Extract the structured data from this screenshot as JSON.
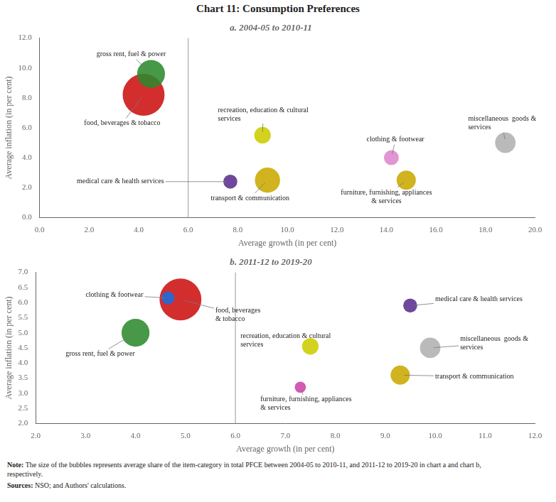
{
  "title": "Chart 11: Consumption Preferences",
  "notes": [
    {
      "bold": "Note:",
      "text": " The size of the bubbles represents average share of the item-category in total PFCE between 2004-05 to 2010-11, and 2011-12 to 2019-20 in chart a and chart b,\nrespectively."
    },
    {
      "bold": "Sources:",
      "text": " NSO; and Authors' calculations."
    }
  ],
  "chart_data": [
    {
      "type": "bubble",
      "subtitle": "a. 2004-05 to 2010-11",
      "xlabel": "Average growth (in per cent)",
      "ylabel": "Average inflation (in per cent)",
      "xlim": [
        0.0,
        20.0
      ],
      "ylim": [
        0.0,
        12.0
      ],
      "xticks": [
        {
          "value": 0.0,
          "label": "0.0"
        },
        {
          "value": 2.0,
          "label": "2.0"
        },
        {
          "value": 4.0,
          "label": "4.0"
        },
        {
          "value": 6.0,
          "label": "6.0"
        },
        {
          "value": 8.0,
          "label": "8.0"
        },
        {
          "value": 10.0,
          "label": "10.0"
        },
        {
          "value": 12.0,
          "label": "12.0"
        },
        {
          "value": 14.0,
          "label": "14.0"
        },
        {
          "value": 16.0,
          "label": "16.0"
        },
        {
          "value": 18.0,
          "label": "18.0"
        },
        {
          "value": 20.0,
          "label": "20.0"
        }
      ],
      "yticks": [
        {
          "value": 0.0,
          "label": "0.0"
        },
        {
          "value": 2.0,
          "label": "2.0"
        },
        {
          "value": 4.0,
          "label": "4.0"
        },
        {
          "value": 6.0,
          "label": "6.0"
        },
        {
          "value": 8.0,
          "label": "8.0"
        },
        {
          "value": 10.0,
          "label": "10.0"
        },
        {
          "value": 12.0,
          "label": "12.0"
        }
      ],
      "grid": false,
      "vline": 6.0,
      "bubbles": [
        {
          "label": "food, beverages & tobacco",
          "x": 4.2,
          "y": 8.2,
          "size": 1800,
          "color": "#cc1111"
        },
        {
          "label": "gross rent, fuel & power",
          "x": 4.5,
          "y": 9.6,
          "size": 800,
          "color": "#2d8a2d"
        },
        {
          "label": "medical care & health services",
          "x": 7.7,
          "y": 2.4,
          "size": 200,
          "color": "#5b2d8e"
        },
        {
          "label": "transport & communication",
          "x": 9.2,
          "y": 2.5,
          "size": 650,
          "color": "#c9a800"
        },
        {
          "label": "recreation, education & cultural\nservices",
          "x": 9.0,
          "y": 5.5,
          "size": 280,
          "color": "#cccc00"
        },
        {
          "label": "clothing & footwear",
          "x": 14.2,
          "y": 4.0,
          "size": 230,
          "color": "#dd88cc"
        },
        {
          "label": "furniture, furnishing, appliances\n& services",
          "x": 14.8,
          "y": 2.5,
          "size": 380,
          "color": "#c9a800"
        },
        {
          "label": "miscellaneous  goods &\nservices",
          "x": 18.8,
          "y": 5.0,
          "size": 430,
          "color": "#b0b0b0"
        }
      ]
    },
    {
      "type": "bubble",
      "subtitle": "b. 2011-12 to 2019-20",
      "xlabel": "Average growth (in per cent)",
      "ylabel": "Average inflation (in per cent)",
      "xlim": [
        2.0,
        12.0
      ],
      "ylim": [
        2.0,
        7.0
      ],
      "xticks": [
        {
          "value": 2.0,
          "label": "2.0"
        },
        {
          "value": 3.0,
          "label": "3.0"
        },
        {
          "value": 4.0,
          "label": "4.0"
        },
        {
          "value": 5.0,
          "label": "5.0"
        },
        {
          "value": 6.0,
          "label": "6.0"
        },
        {
          "value": 7.0,
          "label": "7.0"
        },
        {
          "value": 8.0,
          "label": "8.0"
        },
        {
          "value": 9.0,
          "label": "9.0"
        },
        {
          "value": 10.0,
          "label": "10.0"
        },
        {
          "value": 11.0,
          "label": "11.0"
        },
        {
          "value": 12.0,
          "label": "12.0"
        }
      ],
      "yticks": [
        {
          "value": 2.0,
          "label": "2.0"
        },
        2.5,
        {
          "value": 3.0,
          "label": "3.0"
        },
        3.5,
        {
          "value": 4.0,
          "label": "4.0"
        },
        4.5,
        {
          "value": 5.0,
          "label": "5.0"
        },
        5.5,
        {
          "value": 6.0,
          "label": "6.0"
        },
        6.5,
        {
          "value": 7.0,
          "label": "7.0"
        }
      ],
      "grid": false,
      "vline": 6.0,
      "bubbles": [
        {
          "label": "food, beverages\n& tobacco",
          "x": 4.9,
          "y": 6.1,
          "size": 1800,
          "color": "#cc1111"
        },
        {
          "label": "gross rent, fuel & power",
          "x": 4.0,
          "y": 5.0,
          "size": 800,
          "color": "#2d8a2d"
        },
        {
          "label": "clothing & footwear",
          "x": 4.65,
          "y": 6.15,
          "size": 170,
          "color": "#1a6ee0"
        },
        {
          "label": "medical care & health services",
          "x": 9.5,
          "y": 5.9,
          "size": 200,
          "color": "#5b2d8e"
        },
        {
          "label": "transport & communication",
          "x": 9.3,
          "y": 3.6,
          "size": 380,
          "color": "#c9a800"
        },
        {
          "label": "recreation, education & cultural\nservices",
          "x": 7.5,
          "y": 4.55,
          "size": 280,
          "color": "#cccc00"
        },
        {
          "label": "furniture, furnishing, appliances\n& services",
          "x": 7.3,
          "y": 3.2,
          "size": 130,
          "color": "#cc44aa"
        },
        {
          "label": "miscellaneous  goods &\nservices",
          "x": 9.9,
          "y": 4.5,
          "size": 430,
          "color": "#b0b0b0"
        }
      ]
    }
  ]
}
